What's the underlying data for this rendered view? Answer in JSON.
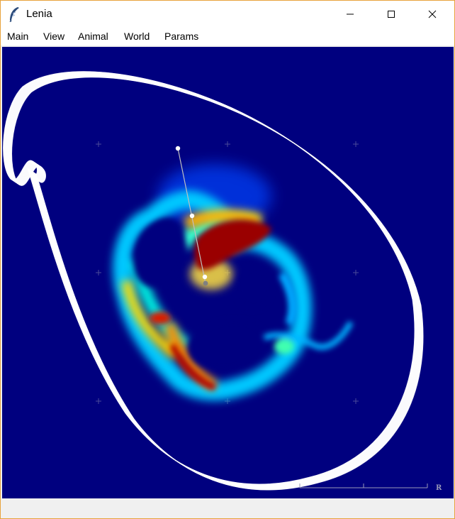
{
  "window": {
    "title": "Lenia"
  },
  "titlebar_controls": {
    "minimize_icon": "minimize-icon",
    "maximize_icon": "maximize-icon",
    "close_icon": "close-icon"
  },
  "menu": {
    "items": [
      "Main",
      "View",
      "Animal",
      "World",
      "Params"
    ]
  },
  "canvas": {
    "background_color": "#00007f",
    "trajectory_color": "#ffffff",
    "scale_bar_label": "R"
  }
}
